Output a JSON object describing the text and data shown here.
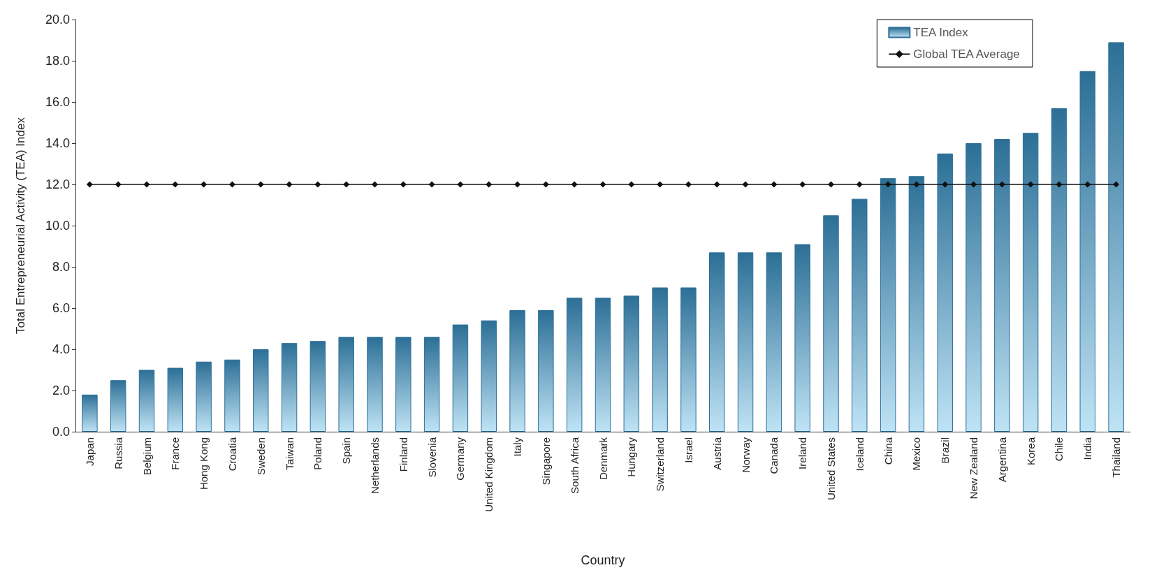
{
  "chart_data": {
    "type": "bar",
    "xlabel": "Country",
    "ylabel": "Total Entrepreneurial Activity (TEA) Index",
    "categories": [
      "Japan",
      "Russia",
      "Belgium",
      "France",
      "Hong Kong",
      "Croatia",
      "Sweden",
      "Taiwan",
      "Poland",
      "Spain",
      "Netherlands",
      "Finland",
      "Slovenia",
      "Germany",
      "United Kingdom",
      "Italy",
      "Singapore",
      "South Africa",
      "Denmark",
      "Hungary",
      "Switzerland",
      "Israel",
      "Austria",
      "Norway",
      "Canada",
      "Ireland",
      "United States",
      "Iceland",
      "China",
      "Mexico",
      "Brazil",
      "New Zealand",
      "Argentina",
      "Korea",
      "Chile",
      "India",
      "Thailand"
    ],
    "series": [
      {
        "name": "TEA Index",
        "color": "#2c6f96",
        "values": [
          1.8,
          2.5,
          3.0,
          3.1,
          3.4,
          3.5,
          4.0,
          4.3,
          4.4,
          4.6,
          4.6,
          4.6,
          4.6,
          5.2,
          5.4,
          5.9,
          5.9,
          6.5,
          6.5,
          6.6,
          7.0,
          7.0,
          8.7,
          8.7,
          8.7,
          9.1,
          10.5,
          11.3,
          12.3,
          12.4,
          13.5,
          14.0,
          14.2,
          14.5,
          15.7,
          17.5,
          18.9
        ]
      },
      {
        "name": "Global TEA Average",
        "type": "line",
        "color": "#111111",
        "marker": "diamond",
        "values": [
          12,
          12,
          12,
          12,
          12,
          12,
          12,
          12,
          12,
          12,
          12,
          12,
          12,
          12,
          12,
          12,
          12,
          12,
          12,
          12,
          12,
          12,
          12,
          12,
          12,
          12,
          12,
          12,
          12,
          12,
          12,
          12,
          12,
          12,
          12,
          12,
          12
        ]
      }
    ],
    "ylim": [
      0,
      20
    ],
    "yticks": [
      {
        "value": 0,
        "label": "0.0"
      },
      {
        "value": 2,
        "label": "2.0"
      },
      {
        "value": 4,
        "label": "4.0"
      },
      {
        "value": 6,
        "label": "6.0"
      },
      {
        "value": 8,
        "label": "8.0"
      },
      {
        "value": 10,
        "label": "10.0"
      },
      {
        "value": 12,
        "label": "12.0"
      },
      {
        "value": 14,
        "label": "14.0"
      },
      {
        "value": 16,
        "label": "16.0"
      },
      {
        "value": 18,
        "label": "18.0"
      },
      {
        "value": 20,
        "label": "20.0"
      }
    ],
    "grid": false,
    "legend": "top right"
  }
}
